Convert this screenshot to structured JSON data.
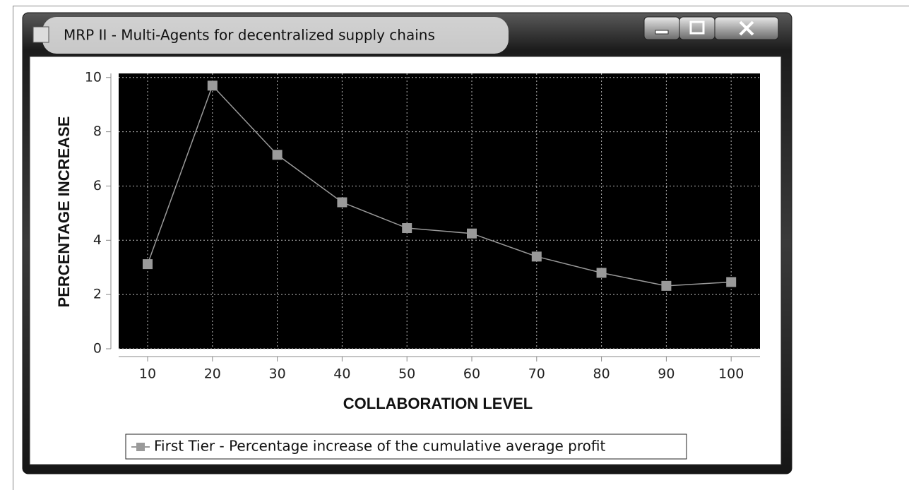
{
  "window": {
    "title": "MRP II - Multi-Agents for decentralized supply chains"
  },
  "chart_data": {
    "type": "line",
    "xlabel": "COLLABORATION LEVEL",
    "ylabel": "PERCENTAGE INCREASE",
    "categories": [
      10,
      20,
      30,
      40,
      50,
      60,
      70,
      80,
      90,
      100
    ],
    "series": [
      {
        "name": "First Tier - Percentage increase of the cumulative average profit",
        "color": "#9a9a9a",
        "values": [
          3.12,
          9.7,
          7.15,
          5.4,
          4.45,
          4.25,
          3.4,
          2.8,
          2.32,
          2.46
        ]
      }
    ],
    "ylim": [
      0,
      10.15
    ],
    "yticks": [
      0,
      2,
      4,
      6,
      8,
      10
    ],
    "grid": true,
    "legend": "bottom"
  }
}
